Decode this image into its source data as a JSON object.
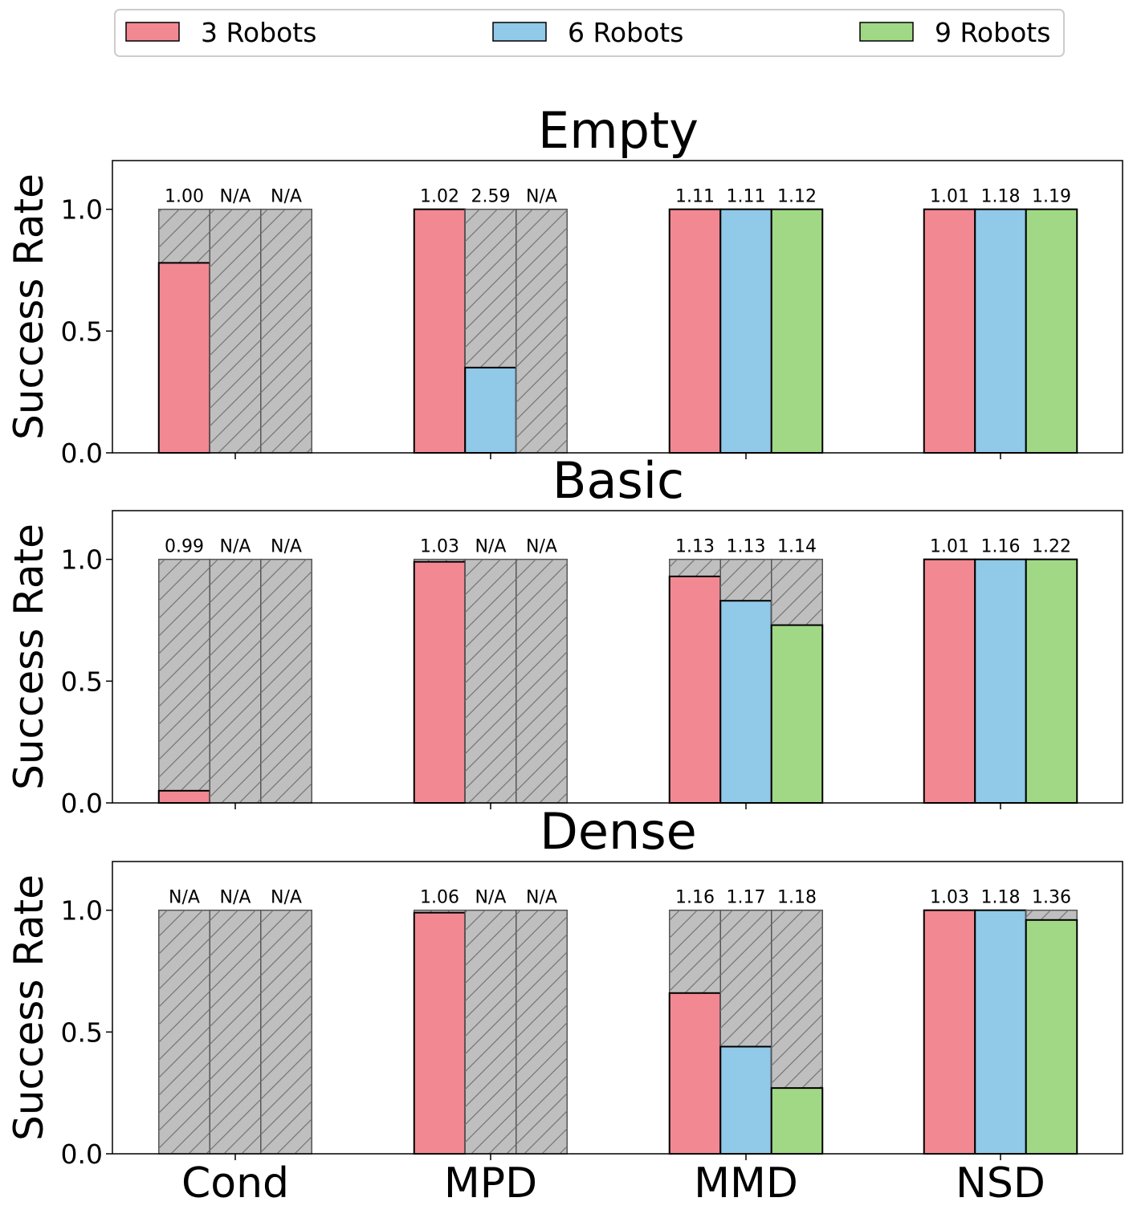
{
  "legend": [
    {
      "label": "3 Robots",
      "color": "#f28892"
    },
    {
      "label": "6 Robots",
      "color": "#91c9e8"
    },
    {
      "label": "9 Robots",
      "color": "#a1d886"
    }
  ],
  "hatch_color": "#bfbfbf",
  "chart_data": [
    {
      "type": "bar",
      "title": "Empty",
      "ylabel": "Success Rate",
      "xlabel": "",
      "ylim": [
        0,
        1.2
      ],
      "yticks": [
        "0.0",
        "0.5",
        "1.0"
      ],
      "categories": [
        "Cond",
        "MPD",
        "MMD",
        "NSD"
      ],
      "series": [
        {
          "name": "3 Robots",
          "values": [
            0.78,
            1.0,
            1.0,
            1.0
          ],
          "labels": [
            "1.00",
            "1.02",
            "1.11",
            "1.01"
          ]
        },
        {
          "name": "6 Robots",
          "values": [
            0.0,
            0.35,
            1.0,
            1.0
          ],
          "labels": [
            "N/A",
            "2.59",
            "1.11",
            "1.18"
          ]
        },
        {
          "name": "9 Robots",
          "values": [
            0.0,
            0.0,
            1.0,
            1.0
          ],
          "labels": [
            "N/A",
            "N/A",
            "1.12",
            "1.19"
          ]
        }
      ]
    },
    {
      "type": "bar",
      "title": "Basic",
      "ylabel": "Success Rate",
      "xlabel": "",
      "ylim": [
        0,
        1.2
      ],
      "yticks": [
        "0.0",
        "0.5",
        "1.0"
      ],
      "categories": [
        "Cond",
        "MPD",
        "MMD",
        "NSD"
      ],
      "series": [
        {
          "name": "3 Robots",
          "values": [
            0.05,
            0.99,
            0.93,
            1.0
          ],
          "labels": [
            "0.99",
            "1.03",
            "1.13",
            "1.01"
          ]
        },
        {
          "name": "6 Robots",
          "values": [
            0.0,
            0.0,
            0.83,
            1.0
          ],
          "labels": [
            "N/A",
            "N/A",
            "1.13",
            "1.16"
          ]
        },
        {
          "name": "9 Robots",
          "values": [
            0.0,
            0.0,
            0.73,
            1.0
          ],
          "labels": [
            "N/A",
            "N/A",
            "1.14",
            "1.22"
          ]
        }
      ]
    },
    {
      "type": "bar",
      "title": "Dense",
      "ylabel": "Success Rate",
      "xlabel": "",
      "ylim": [
        0,
        1.2
      ],
      "yticks": [
        "0.0",
        "0.5",
        "1.0"
      ],
      "categories": [
        "Cond",
        "MPD",
        "MMD",
        "NSD"
      ],
      "series": [
        {
          "name": "3 Robots",
          "values": [
            0.0,
            0.99,
            0.66,
            1.0
          ],
          "labels": [
            "N/A",
            "1.06",
            "1.16",
            "1.03"
          ]
        },
        {
          "name": "6 Robots",
          "values": [
            0.0,
            0.0,
            0.44,
            1.0
          ],
          "labels": [
            "N/A",
            "N/A",
            "1.17",
            "1.18"
          ]
        },
        {
          "name": "9 Robots",
          "values": [
            0.0,
            0.0,
            0.27,
            0.96
          ],
          "labels": [
            "N/A",
            "N/A",
            "1.18",
            "1.36"
          ]
        }
      ]
    }
  ]
}
